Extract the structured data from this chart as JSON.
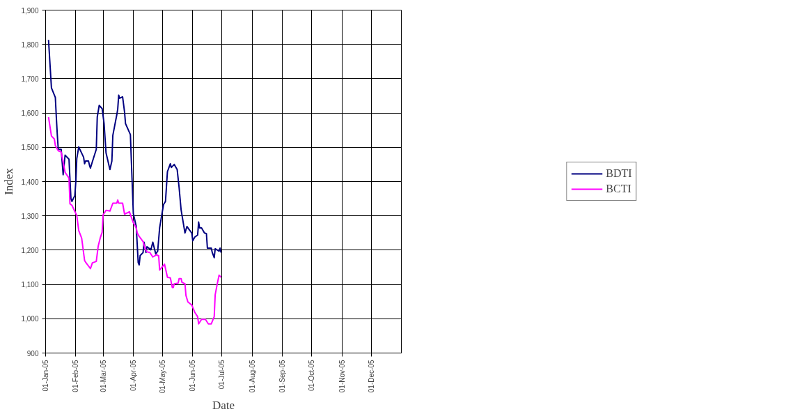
{
  "chart_data": {
    "type": "line",
    "xlabel": "Date",
    "ylabel": "Index",
    "legend": "right",
    "grid": true,
    "marker": "none",
    "line_style": "solid",
    "xlim": [
      "2005-01-01",
      "2006-01-01"
    ],
    "xticks": [
      {
        "value": "2005-01-01",
        "label": "01-Jan-05"
      },
      {
        "value": "2005-02-01",
        "label": "01-Feb-05"
      },
      {
        "value": "2005-03-01",
        "label": "01-Mar-05"
      },
      {
        "value": "2005-04-01",
        "label": "01-Apr-05"
      },
      {
        "value": "2005-05-01",
        "label": "01-May-05"
      },
      {
        "value": "2005-06-01",
        "label": "01-Jun-05"
      },
      {
        "value": "2005-07-01",
        "label": "01-Jul-05"
      },
      {
        "value": "2005-08-01",
        "label": "01-Aug-05"
      },
      {
        "value": "2005-09-01",
        "label": "01-Sep-05"
      },
      {
        "value": "2005-10-01",
        "label": "01-Oct-05"
      },
      {
        "value": "2005-11-01",
        "label": "01-Nov-05"
      },
      {
        "value": "2005-12-01",
        "label": "01-Dec-05"
      }
    ],
    "ylim": [
      900,
      1900
    ],
    "yticks": [
      900,
      {
        "value": 1000,
        "label": "1,000"
      },
      {
        "value": 1100,
        "label": "1,100"
      },
      {
        "value": 1200,
        "label": "1,200"
      },
      {
        "value": 1300,
        "label": "1,300"
      },
      {
        "value": 1400,
        "label": "1,400"
      },
      {
        "value": 1500,
        "label": "1,500"
      },
      {
        "value": 1600,
        "label": "1,600"
      },
      {
        "value": 1700,
        "label": "1,700"
      },
      {
        "value": 1800,
        "label": "1,800"
      },
      {
        "value": 1900,
        "label": "1,900"
      }
    ],
    "series": [
      {
        "name": "BDTI",
        "color": "#000080",
        "x": [
          "2005-01-04",
          "2005-01-07",
          "2005-01-11",
          "2005-01-12",
          "2005-01-13",
          "2005-01-14",
          "2005-01-17",
          "2005-01-19",
          "2005-01-21",
          "2005-01-25",
          "2005-01-27",
          "2005-01-28",
          "2005-01-31",
          "2005-02-01",
          "2005-02-02",
          "2005-02-04",
          "2005-02-09",
          "2005-02-10",
          "2005-02-11",
          "2005-02-14",
          "2005-02-15",
          "2005-02-16",
          "2005-02-18",
          "2005-02-22",
          "2005-02-23",
          "2005-02-25",
          "2005-02-28",
          "2005-03-02",
          "2005-03-04",
          "2005-03-08",
          "2005-03-10",
          "2005-03-11",
          "2005-03-15",
          "2005-03-16",
          "2005-03-17",
          "2005-03-18",
          "2005-03-21",
          "2005-03-23",
          "2005-03-24",
          "2005-03-29",
          "2005-03-30",
          "2005-04-01",
          "2005-04-04",
          "2005-04-06",
          "2005-04-07",
          "2005-04-08",
          "2005-04-11",
          "2005-04-12",
          "2005-04-14",
          "2005-04-15",
          "2005-04-19",
          "2005-04-21",
          "2005-04-24",
          "2005-04-26",
          "2005-04-28",
          "2005-05-02",
          "2005-05-04",
          "2005-05-06",
          "2005-05-09",
          "2005-05-10",
          "2005-05-13",
          "2005-05-16",
          "2005-05-18",
          "2005-05-20",
          "2005-05-24",
          "2005-05-26",
          "2005-05-28",
          "2005-05-31",
          "2005-06-01",
          "2005-06-03",
          "2005-06-06",
          "2005-06-07",
          "2005-06-08",
          "2005-06-10",
          "2005-06-13",
          "2005-06-15",
          "2005-06-16",
          "2005-06-20",
          "2005-06-21",
          "2005-06-23",
          "2005-06-24",
          "2005-06-28",
          "2005-06-29",
          "2005-06-30"
        ],
        "values": [
          1813,
          1673,
          1645,
          1588,
          1537,
          1494,
          1494,
          1420,
          1477,
          1465,
          1350,
          1342,
          1359,
          1399,
          1467,
          1501,
          1471,
          1452,
          1460,
          1460,
          1448,
          1439,
          1458,
          1494,
          1588,
          1622,
          1613,
          1569,
          1484,
          1435,
          1460,
          1535,
          1594,
          1611,
          1652,
          1643,
          1647,
          1603,
          1569,
          1537,
          1460,
          1307,
          1269,
          1164,
          1157,
          1184,
          1193,
          1223,
          1193,
          1210,
          1201,
          1223,
          1189,
          1197,
          1265,
          1333,
          1342,
          1429,
          1452,
          1441,
          1450,
          1435,
          1382,
          1318,
          1250,
          1269,
          1261,
          1250,
          1227,
          1238,
          1244,
          1282,
          1265,
          1265,
          1250,
          1248,
          1206,
          1206,
          1193,
          1178,
          1204,
          1197,
          1206,
          1193
        ]
      },
      {
        "name": "BCTI",
        "color": "#ff00ff",
        "x": [
          "2005-01-04",
          "2005-01-07",
          "2005-01-10",
          "2005-01-11",
          "2005-01-14",
          "2005-01-17",
          "2005-01-21",
          "2005-01-25",
          "2005-01-26",
          "2005-01-28",
          "2005-02-02",
          "2005-02-04",
          "2005-02-07",
          "2005-02-10",
          "2005-02-11",
          "2005-02-15",
          "2005-02-16",
          "2005-02-18",
          "2005-02-22",
          "2005-02-24",
          "2005-02-26",
          "2005-02-28",
          "2005-03-01",
          "2005-03-04",
          "2005-03-08",
          "2005-03-11",
          "2005-03-15",
          "2005-03-16",
          "2005-03-17",
          "2005-03-21",
          "2005-03-23",
          "2005-03-28",
          "2005-04-01",
          "2005-04-04",
          "2005-04-05",
          "2005-04-07",
          "2005-04-11",
          "2005-04-13",
          "2005-04-15",
          "2005-04-18",
          "2005-04-21",
          "2005-04-25",
          "2005-04-26",
          "2005-04-27",
          "2005-04-28",
          "2005-05-03",
          "2005-05-06",
          "2005-05-09",
          "2005-05-11",
          "2005-05-12",
          "2005-05-13",
          "2005-05-17",
          "2005-05-18",
          "2005-05-20",
          "2005-05-21",
          "2005-05-24",
          "2005-05-25",
          "2005-05-27",
          "2005-05-31",
          "2005-06-03",
          "2005-06-06",
          "2005-06-07",
          "2005-06-10",
          "2005-06-14",
          "2005-06-17",
          "2005-06-20",
          "2005-06-23",
          "2005-06-24",
          "2005-06-26",
          "2005-06-28",
          "2005-06-30"
        ],
        "values": [
          1588,
          1533,
          1524,
          1505,
          1490,
          1486,
          1427,
          1410,
          1335,
          1331,
          1301,
          1257,
          1235,
          1170,
          1165,
          1150,
          1146,
          1163,
          1167,
          1212,
          1235,
          1252,
          1303,
          1316,
          1314,
          1337,
          1337,
          1346,
          1337,
          1337,
          1305,
          1312,
          1280,
          1265,
          1250,
          1240,
          1225,
          1206,
          1195,
          1193,
          1180,
          1187,
          1184,
          1184,
          1142,
          1159,
          1121,
          1119,
          1091,
          1091,
          1102,
          1104,
          1117,
          1117,
          1106,
          1102,
          1068,
          1049,
          1040,
          1019,
          1006,
          985,
          998,
          998,
          985,
          985,
          1006,
          1070,
          1100,
          1127,
          1121
        ]
      }
    ]
  }
}
